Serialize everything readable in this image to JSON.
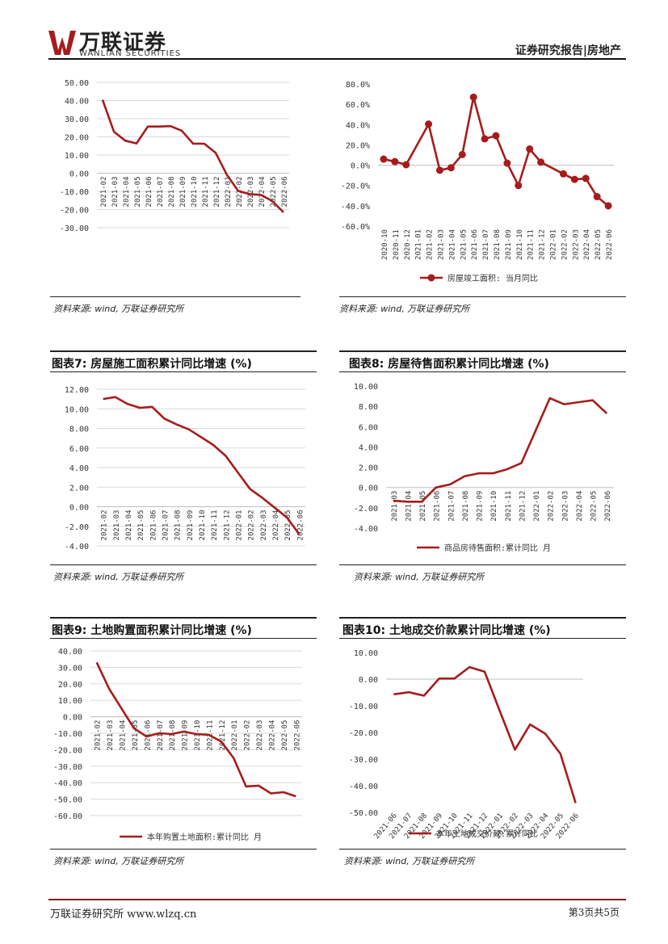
{
  "header": {
    "logo_cn": "万联证券",
    "logo_en": "WANLIAN SECURITIES",
    "report_title": "证券研究报告|房地产"
  },
  "sources": {
    "s1": "资料来源: wind, 万联证券研究所",
    "s2": "资料来源: wind, 万联证券研究所",
    "s3": "资料来源: wind, 万联证券研究所",
    "s4": "资料来源: wind, 万联证券研究所",
    "s5": "资料来源: wind, 万联证券研究所",
    "s6": "资料来源: wind, 万联证券研究所"
  },
  "figures": {
    "f7": "图表7: 房屋施工面积累计同比增速 (%)",
    "f8": "图表8: 房屋待售面积累计同比增速 (%)",
    "f9": "图表9: 土地购置面积累计同比增速 (%)",
    "f10": "图表10: 土地成交价款累计同比增速 (%)"
  },
  "footer": {
    "left": "万联证券研究所 www.wlzq.cn",
    "right": "第3页共5页"
  },
  "colors": {
    "series": "#a61c1c",
    "grid": "#d9d9d9"
  },
  "chart_data": [
    {
      "id": "c1",
      "type": "line",
      "title": "",
      "categories": [
        "2021-02",
        "2021-03",
        "2021-04",
        "2021-05",
        "2021-06",
        "2021-07",
        "2021-08",
        "2021-09",
        "2021-10",
        "2021-11",
        "2021-12",
        "2022-01",
        "2022-02",
        "2022-03",
        "2022-04",
        "2022-05",
        "2022-06"
      ],
      "values": [
        40.4,
        22.9,
        17.9,
        16.4,
        25.7,
        25.7,
        25.9,
        23.4,
        16.3,
        16.2,
        11.2,
        -1.0,
        -9.8,
        -11.5,
        -11.9,
        -15.3,
        -21.5
      ],
      "ylim": [
        -30,
        50
      ],
      "yticks": [
        50,
        40,
        30,
        20,
        10,
        0,
        -10,
        -20,
        -30
      ],
      "decimals": 2,
      "markers": false,
      "legend": "",
      "grid": true
    },
    {
      "id": "c2",
      "type": "line",
      "title": "",
      "categories": [
        "2020-10",
        "2020-11",
        "2020-12",
        "2021-01",
        "2021-02",
        "2021-03",
        "2021-04",
        "2021-05",
        "2021-06",
        "2021-07",
        "2021-08",
        "2021-09",
        "2021-10",
        "2021-11",
        "2021-12",
        "2022-01",
        "2022-02",
        "2022-03",
        "2022-04",
        "2022-05",
        "2022-06"
      ],
      "values": [
        6,
        3.5,
        0.5,
        null,
        40.5,
        -5,
        -2.5,
        10.5,
        67,
        26,
        29,
        2,
        -20,
        16,
        3,
        null,
        -8.5,
        -14,
        -13,
        -31,
        -40
      ],
      "ylim": [
        -60,
        80
      ],
      "yticks": [
        80,
        60,
        40,
        20,
        0,
        -20,
        -40,
        -60
      ],
      "decimals": 1,
      "pct": true,
      "markers": true,
      "legend": "房屋竣工面积: 当月同比",
      "grid": false
    },
    {
      "id": "c3",
      "type": "line",
      "title": "",
      "categories": [
        "2021-02",
        "2021-03",
        "2021-04",
        "2021-05",
        "2021-06",
        "2021-07",
        "2021-08",
        "2021-09",
        "2021-10",
        "2021-11",
        "2021-12",
        "2022-01",
        "2022-02",
        "2022-03",
        "2022-04",
        "2022-05",
        "2022-06"
      ],
      "values": [
        11.0,
        11.2,
        10.5,
        10.1,
        10.2,
        9.0,
        8.4,
        7.9,
        7.1,
        6.3,
        5.2,
        3.5,
        1.8,
        0.9,
        -0.1,
        -1.1,
        -2.8
      ],
      "ylim": [
        -4,
        12
      ],
      "yticks": [
        12,
        10,
        8,
        6,
        4,
        2,
        0,
        -2,
        -4
      ],
      "decimals": 2,
      "markers": false,
      "legend": "",
      "grid": true
    },
    {
      "id": "c4",
      "type": "line",
      "title": "",
      "categories": [
        "2021-03",
        "2021-04",
        "2021-05",
        "2021-06",
        "2021-07",
        "2021-08",
        "2021-09",
        "2021-10",
        "2021-11",
        "2021-12",
        "2022-01",
        "2022-02",
        "2022-03",
        "2022-04",
        "2022-05",
        "2022-06"
      ],
      "values": [
        -1.3,
        -1.4,
        -1.4,
        0.0,
        0.3,
        1.1,
        1.4,
        1.4,
        1.8,
        2.4,
        5.6,
        8.8,
        8.2,
        8.4,
        8.6,
        7.3
      ],
      "ylim": [
        -4,
        10
      ],
      "yticks": [
        10,
        8,
        6,
        4,
        2,
        0,
        -2,
        -4
      ],
      "decimals": 2,
      "markers": false,
      "legend": "商品房待售面积:累计同比 月",
      "grid": false
    },
    {
      "id": "c5",
      "type": "line",
      "title": "",
      "categories": [
        "2021-02",
        "2021-03",
        "2021-04",
        "2021-05",
        "2021-06",
        "2021-07",
        "2021-08",
        "2021-09",
        "2021-10",
        "2021-11",
        "2021-12",
        "2022-01",
        "2022-02",
        "2022-03",
        "2022-04",
        "2022-05",
        "2022-06"
      ],
      "values": [
        33.0,
        17.0,
        5.0,
        -7.0,
        -12.0,
        -10.0,
        -10.5,
        -9.0,
        -10.5,
        -11.0,
        -15.0,
        -25.0,
        -42.3,
        -41.8,
        -46.5,
        -45.8,
        -48.3
      ],
      "ylim": [
        -60,
        40
      ],
      "yticks": [
        40,
        30,
        20,
        10,
        0,
        -10,
        -20,
        -30,
        -40,
        -50,
        -60
      ],
      "decimals": 2,
      "markers": false,
      "legend": "本年购置土地面积:累计同比 月",
      "grid": true
    },
    {
      "id": "c6",
      "type": "line",
      "title": "",
      "categories": [
        "2021-06",
        "2021-07",
        "2021-08",
        "2021-09",
        "2021-10",
        "2021-11",
        "2021-12",
        "2022-01",
        "2022-02",
        "2022-03",
        "2022-04",
        "2022-05",
        "2022-06"
      ],
      "values": [
        -5.7,
        -4.9,
        -6.2,
        0.2,
        0.2,
        4.5,
        2.8,
        -12.0,
        -26.5,
        -17.0,
        -20.5,
        -28.0,
        -46.5
      ],
      "ylim": [
        -50,
        10
      ],
      "yticks": [
        10,
        0,
        -10,
        -20,
        -30,
        -40,
        -50
      ],
      "decimals": 2,
      "markers": false,
      "legend": "本年土地成交价款:累计同比",
      "grid": false
    }
  ]
}
